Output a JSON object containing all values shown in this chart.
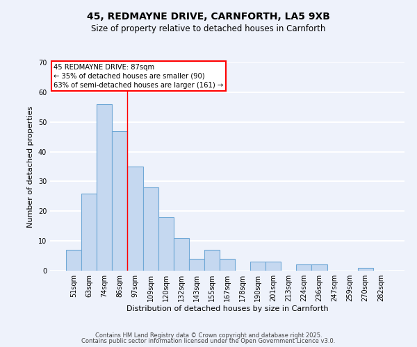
{
  "title": "45, REDMAYNE DRIVE, CARNFORTH, LA5 9XB",
  "subtitle": "Size of property relative to detached houses in Carnforth",
  "xlabel": "Distribution of detached houses by size in Carnforth",
  "ylabel": "Number of detached properties",
  "categories": [
    "51sqm",
    "63sqm",
    "74sqm",
    "86sqm",
    "97sqm",
    "109sqm",
    "120sqm",
    "132sqm",
    "143sqm",
    "155sqm",
    "167sqm",
    "178sqm",
    "190sqm",
    "201sqm",
    "213sqm",
    "224sqm",
    "236sqm",
    "247sqm",
    "259sqm",
    "270sqm",
    "282sqm"
  ],
  "values": [
    7,
    26,
    56,
    47,
    35,
    28,
    18,
    11,
    4,
    7,
    4,
    0,
    3,
    3,
    0,
    2,
    2,
    0,
    0,
    1,
    0
  ],
  "bar_color": "#c5d8f0",
  "bar_edge_color": "#6fa8d6",
  "ylim": [
    0,
    70
  ],
  "yticks": [
    0,
    10,
    20,
    30,
    40,
    50,
    60,
    70
  ],
  "annotation_line1": "45 REDMAYNE DRIVE: 87sqm",
  "annotation_line2": "← 35% of detached houses are smaller (90)",
  "annotation_line3": "63% of semi-detached houses are larger (161) →",
  "vline_x": 3.5,
  "footer_line1": "Contains HM Land Registry data © Crown copyright and database right 2025.",
  "footer_line2": "Contains public sector information licensed under the Open Government Licence v3.0.",
  "background_color": "#eef2fb",
  "grid_color": "white",
  "title_fontsize": 10,
  "subtitle_fontsize": 8.5,
  "axis_label_fontsize": 8,
  "tick_fontsize": 7,
  "footer_fontsize": 6
}
